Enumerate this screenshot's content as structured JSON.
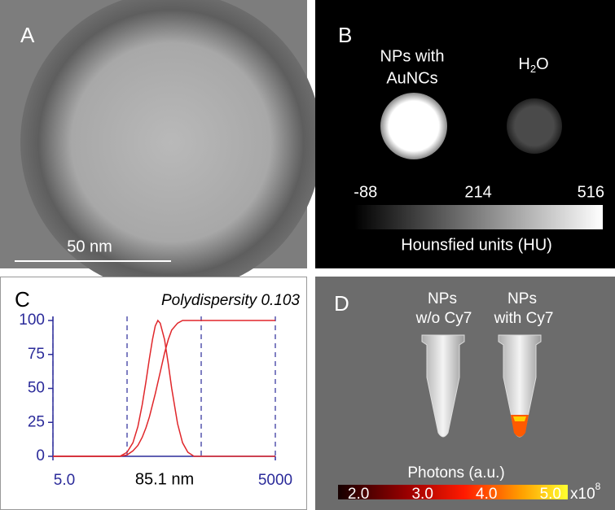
{
  "panels": {
    "A": {
      "label": "A",
      "scale_bar": "50 nm"
    },
    "B": {
      "label": "B",
      "sample_1": [
        "NPs with",
        "AuNCs"
      ],
      "sample_2": {
        "base": "H",
        "subscript": "2",
        "rest": "O"
      },
      "colorbar": {
        "lim": [
          -118,
          548
        ],
        "ticks": [
          -88,
          214,
          516
        ],
        "title": "Hounsfied units (HU)"
      }
    },
    "D": {
      "label": "D",
      "sample_1": [
        "NPs",
        "w/o Cy7"
      ],
      "sample_2": [
        "NPs",
        "with Cy7"
      ],
      "colorbar": {
        "title": "Photons (a.u.)",
        "lim": [
          1.68,
          5.27
        ],
        "ticks": [
          {
            "value": 2,
            "label": "2.0"
          },
          {
            "value": 3,
            "label": "3.0"
          },
          {
            "value": 4,
            "label": "4.0"
          },
          {
            "value": 5,
            "label": "5.0"
          }
        ],
        "multiplier": {
          "base": "x10",
          "exponent": "8"
        }
      }
    }
  },
  "chart_data": {
    "type": "line",
    "panel_label": "C",
    "title": "Polydispersity 0.103",
    "annotation": "85.1 nm",
    "xlog": true,
    "xlim": [
      5,
      5000
    ],
    "xticks": [
      {
        "value": 5,
        "label": "5.0"
      },
      5000
    ],
    "xgrid": [
      5,
      50,
      500,
      5000
    ],
    "ylim": [
      0,
      100
    ],
    "yticks": [
      0,
      25,
      50,
      75,
      100
    ],
    "series": [
      {
        "color": "#e0262a",
        "x": [
          5,
          40,
          50,
          60,
          70,
          80,
          90,
          100,
          110,
          120,
          130,
          140,
          160,
          180,
          200,
          240,
          280,
          330,
          400,
          5000
        ],
        "values": [
          0,
          0,
          3,
          10,
          22,
          38,
          55,
          72,
          86,
          96,
          100,
          98,
          86,
          68,
          50,
          24,
          10,
          3,
          0,
          0
        ]
      },
      {
        "color": "#e0262a",
        "x": [
          5,
          40,
          50,
          60,
          70,
          80,
          90,
          100,
          120,
          140,
          160,
          180,
          200,
          240,
          280,
          330,
          5000
        ],
        "values": [
          0,
          0,
          1,
          4,
          8,
          14,
          21,
          29,
          46,
          62,
          76,
          86,
          93,
          98,
          100,
          100,
          100
        ]
      }
    ]
  }
}
